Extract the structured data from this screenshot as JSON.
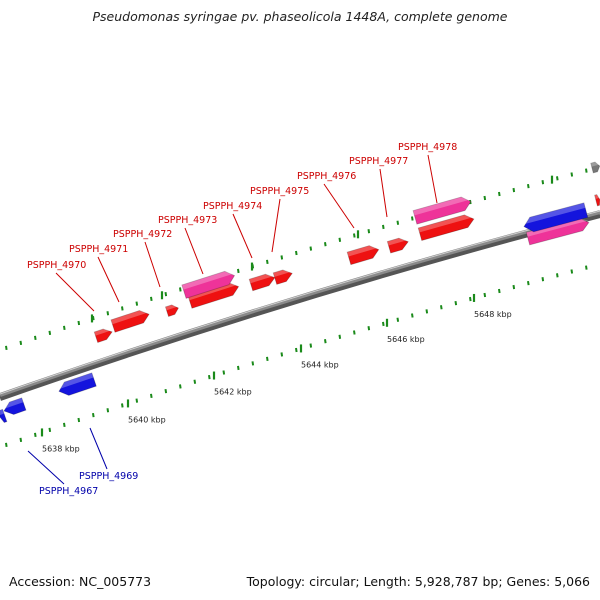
{
  "title": "Pseudomonas syringae pv. phaseolicola 1448A, complete genome",
  "footer": {
    "accession": "Accession: NC_005773",
    "stats": "Topology: circular; Length: 5,928,787 bp; Genes: 5,066"
  },
  "colors": {
    "backbone": "#8a8a8a",
    "dots": "#1a8a1a",
    "red": "#ee1111",
    "pink": "#ee3399",
    "blue": "#1414dd",
    "gray": "#777777",
    "label_red": "#cc0000",
    "label_blue": "#0000aa"
  },
  "scale": {
    "unit": "kbp",
    "ticks": [
      {
        "kbp": 5638,
        "label": "5638 kbp"
      },
      {
        "kbp": 5640,
        "label": "5640 kbp"
      },
      {
        "kbp": 5642,
        "label": "5642 kbp"
      },
      {
        "kbp": 5644,
        "label": "5644 kbp"
      },
      {
        "kbp": 5646,
        "label": "5646 kbp"
      },
      {
        "kbp": 5648,
        "label": "5648 kbp"
      }
    ]
  },
  "gene_labels": [
    {
      "id": "PSPPH_4967",
      "text": "PSPPH_4967",
      "color": "blue"
    },
    {
      "id": "PSPPH_4969",
      "text": "PSPPH_4969",
      "color": "blue"
    },
    {
      "id": "PSPPH_4970",
      "text": "PSPPH_4970",
      "color": "red"
    },
    {
      "id": "PSPPH_4971",
      "text": "PSPPH_4971",
      "color": "red"
    },
    {
      "id": "PSPPH_4972",
      "text": "PSPPH_4972",
      "color": "red"
    },
    {
      "id": "PSPPH_4973",
      "text": "PSPPH_4973",
      "color": "red"
    },
    {
      "id": "PSPPH_4974",
      "text": "PSPPH_4974",
      "color": "red"
    },
    {
      "id": "PSPPH_4975",
      "text": "PSPPH_4975",
      "color": "red"
    },
    {
      "id": "PSPPH_4976",
      "text": "PSPPH_4976",
      "color": "red"
    },
    {
      "id": "PSPPH_4977",
      "text": "PSPPH_4977",
      "color": "red"
    },
    {
      "id": "PSPPH_4978",
      "text": "PSPPH_4978",
      "color": "red"
    }
  ]
}
